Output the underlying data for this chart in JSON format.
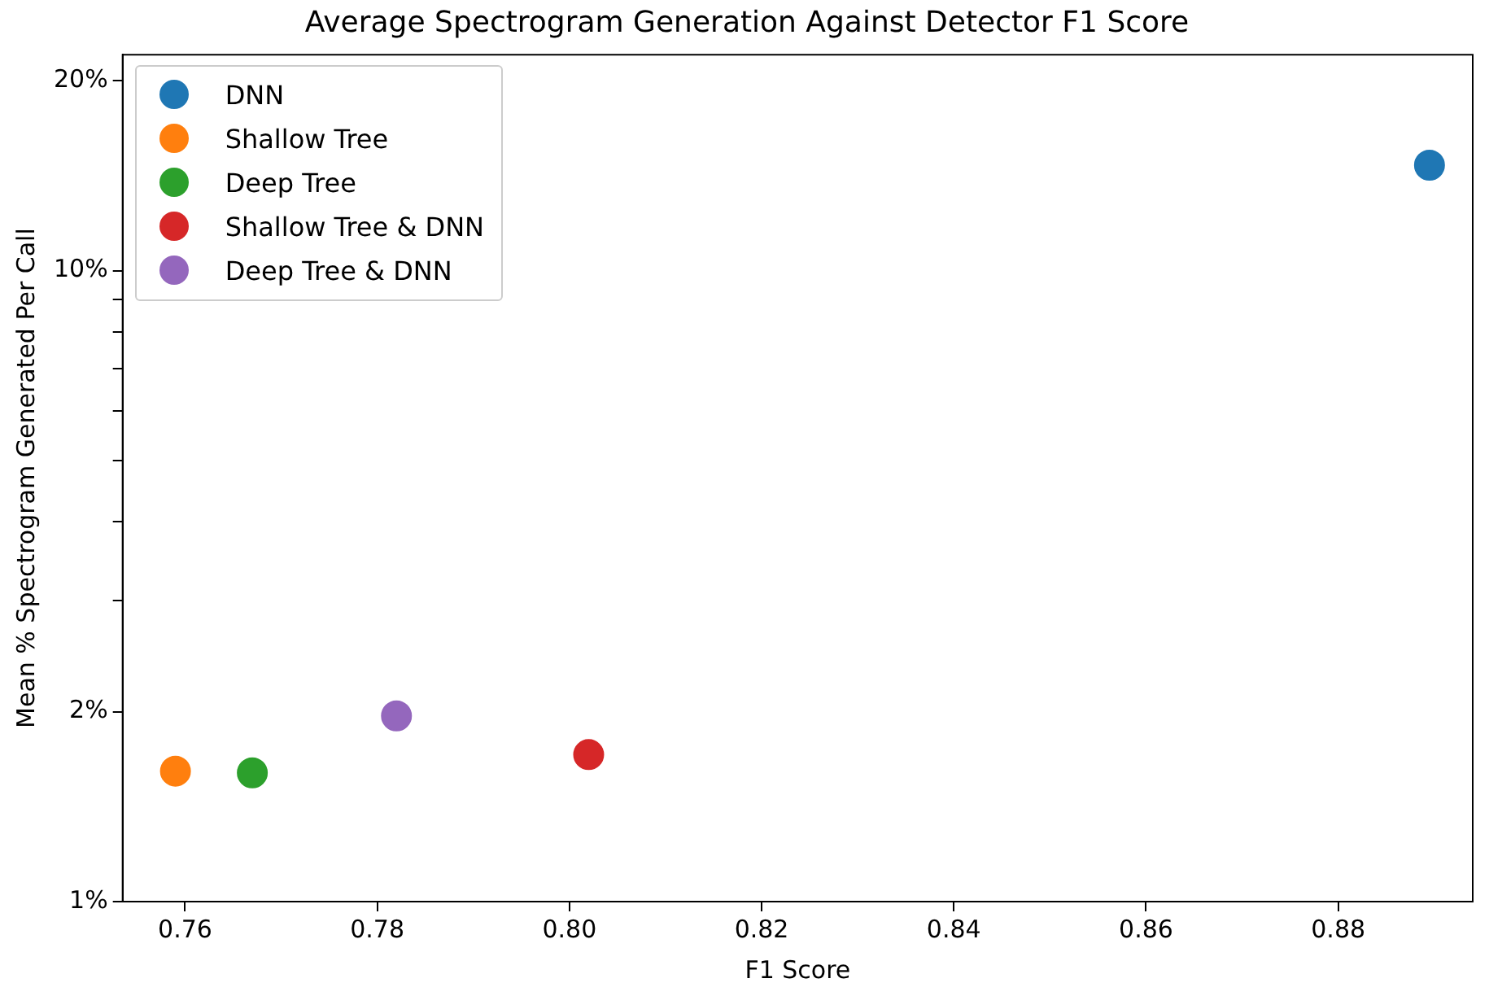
{
  "chart_data": {
    "type": "scatter",
    "title": "Average Spectrogram Generation Against Detector F1 Score",
    "xlabel": "F1 Score",
    "ylabel": "Mean % Spectrogram Generated Per Call",
    "series": [
      {
        "name": "DNN",
        "color": "#1f77b4",
        "x": [
          0.8895
        ],
        "values": [
          14.7
        ]
      },
      {
        "name": "Shallow Tree",
        "color": "#ff7f0e",
        "x": [
          0.759
        ],
        "values": [
          1.61
        ]
      },
      {
        "name": "Deep Tree",
        "color": "#2ca02c",
        "x": [
          0.767
        ],
        "values": [
          1.6
        ]
      },
      {
        "name": "Shallow Tree & DNN",
        "color": "#d62728",
        "x": [
          0.802
        ],
        "values": [
          1.71
        ]
      },
      {
        "name": "Deep Tree & DNN",
        "color": "#9467bd",
        "x": [
          0.782
        ],
        "values": [
          1.97
        ]
      }
    ],
    "xlim": [
      0.7535,
      0.894
    ],
    "xticks": [
      0.76,
      0.78,
      {
        "value": 0.8,
        "label": "0.80"
      },
      0.82,
      0.84,
      0.86,
      0.88
    ],
    "ylim": [
      1,
      22
    ],
    "yticks": [
      {
        "value": 1,
        "label": "1%"
      },
      {
        "value": 2,
        "label": "2%"
      },
      {
        "value": 3,
        "label": null
      },
      {
        "value": 4,
        "label": null
      },
      {
        "value": 5,
        "label": null
      },
      {
        "value": 6,
        "label": null
      },
      {
        "value": 7,
        "label": null
      },
      {
        "value": 8,
        "label": null
      },
      {
        "value": 9,
        "label": null
      },
      {
        "value": 10,
        "label": "10%"
      },
      {
        "value": 20,
        "label": "20%"
      }
    ],
    "log": "y",
    "grid": false,
    "legend": "top left",
    "marker": "circle"
  }
}
